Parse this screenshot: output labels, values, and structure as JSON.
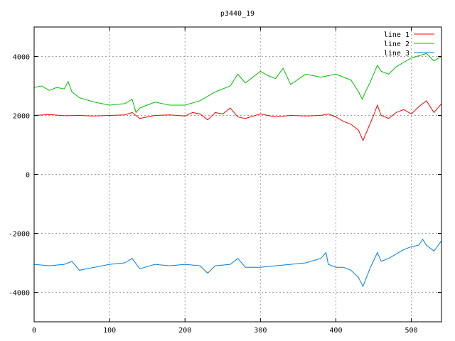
{
  "chart_data": {
    "type": "line",
    "title": "p3440_19",
    "xlabel": "",
    "ylabel": "",
    "xlim": [
      0,
      540
    ],
    "ylim": [
      -5000,
      5000
    ],
    "x_ticks": [
      0,
      100,
      200,
      300,
      400,
      500
    ],
    "y_ticks": [
      -4000,
      -2000,
      0,
      2000,
      4000
    ],
    "grid": true,
    "legend_position": "top-right",
    "series": [
      {
        "name": "line 1",
        "color": "#ff0000",
        "x": [
          0,
          20,
          40,
          60,
          80,
          100,
          120,
          130,
          140,
          160,
          180,
          200,
          210,
          220,
          230,
          240,
          250,
          260,
          270,
          280,
          300,
          320,
          340,
          360,
          380,
          390,
          400,
          410,
          420,
          430,
          436,
          445,
          450,
          455,
          460,
          470,
          480,
          490,
          500,
          510,
          520,
          530,
          540
        ],
        "y": [
          2000,
          2030,
          1990,
          2000,
          1980,
          2000,
          2020,
          2100,
          1900,
          2000,
          2020,
          1980,
          2100,
          2050,
          1850,
          2100,
          2050,
          2250,
          1950,
          1900,
          2050,
          1950,
          2000,
          1980,
          2000,
          2050,
          1950,
          1800,
          1700,
          1500,
          1150,
          1700,
          2000,
          2350,
          2000,
          1900,
          2100,
          2200,
          2050,
          2300,
          2500,
          2100,
          2400
        ]
      },
      {
        "name": "line 2",
        "color": "#00c000",
        "x": [
          0,
          10,
          20,
          30,
          40,
          45,
          50,
          60,
          80,
          100,
          120,
          130,
          135,
          140,
          160,
          180,
          200,
          220,
          240,
          260,
          270,
          280,
          300,
          310,
          320,
          330,
          340,
          360,
          380,
          400,
          410,
          420,
          430,
          435,
          440,
          445,
          455,
          460,
          470,
          480,
          500,
          520,
          530,
          540
        ],
        "y": [
          2950,
          3000,
          2850,
          2950,
          2900,
          3150,
          2800,
          2600,
          2450,
          2350,
          2400,
          2550,
          2100,
          2250,
          2450,
          2350,
          2350,
          2500,
          2800,
          3000,
          3400,
          3100,
          3500,
          3350,
          3250,
          3600,
          3050,
          3400,
          3300,
          3400,
          3300,
          3200,
          2800,
          2550,
          2850,
          3100,
          3700,
          3500,
          3400,
          3650,
          3950,
          4100,
          3850,
          4000
        ]
      },
      {
        "name": "line 3",
        "color": "#0080e0",
        "x": [
          0,
          20,
          40,
          50,
          60,
          80,
          100,
          120,
          130,
          140,
          160,
          180,
          200,
          220,
          230,
          240,
          260,
          270,
          280,
          300,
          320,
          340,
          360,
          380,
          387,
          390,
          400,
          410,
          420,
          430,
          436,
          445,
          455,
          460,
          470,
          480,
          490,
          500,
          510,
          515,
          520,
          530,
          540
        ],
        "y": [
          -3050,
          -3100,
          -3050,
          -2950,
          -3250,
          -3150,
          -3050,
          -3000,
          -2850,
          -3200,
          -3050,
          -3100,
          -3050,
          -3100,
          -3350,
          -3100,
          -3050,
          -2850,
          -3150,
          -3150,
          -3100,
          -3050,
          -3000,
          -2850,
          -2650,
          -3050,
          -3150,
          -3150,
          -3250,
          -3500,
          -3800,
          -3200,
          -2650,
          -2950,
          -2850,
          -2700,
          -2550,
          -2450,
          -2400,
          -2200,
          -2400,
          -2600,
          -2250
        ]
      }
    ]
  }
}
